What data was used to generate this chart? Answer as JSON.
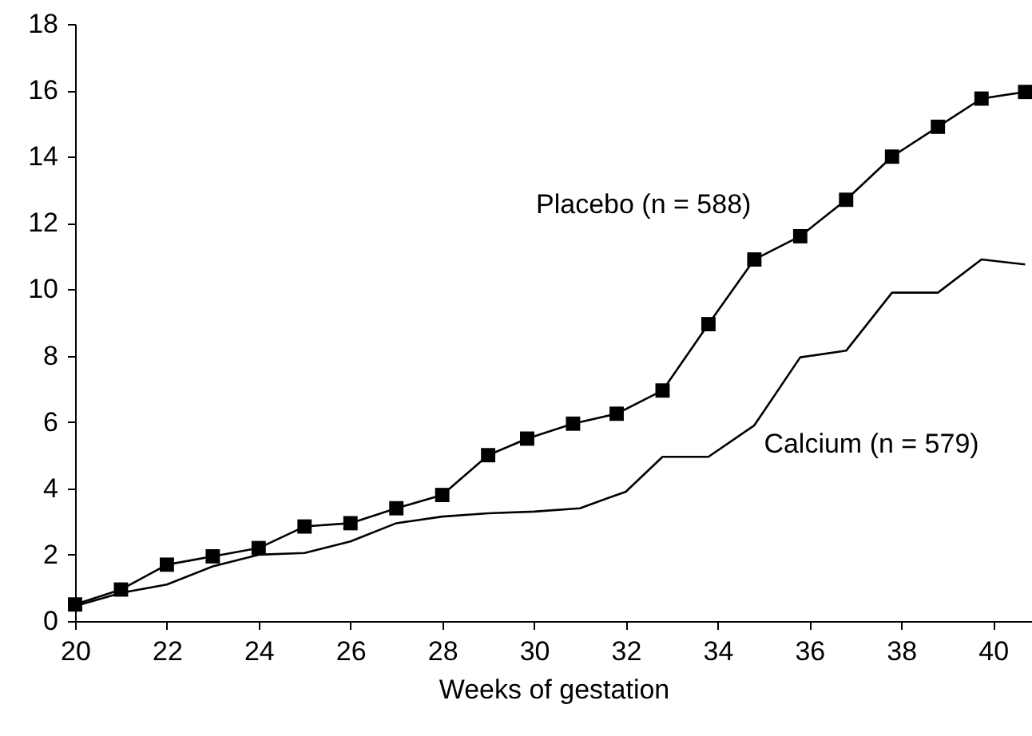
{
  "chart_data": {
    "type": "line",
    "xlabel": "Weeks of gestation",
    "xlim": [
      20,
      40.85
    ],
    "xticks": [
      20,
      22,
      24,
      26,
      28,
      30,
      32,
      34,
      36,
      38,
      40
    ],
    "ylim": [
      0,
      18
    ],
    "yticks": [
      0,
      2,
      4,
      6,
      8,
      10,
      12,
      14,
      16,
      18
    ],
    "grid": false,
    "line_style": "solid",
    "series": [
      {
        "name": "Placebo (n = 588)",
        "color": "#000000",
        "marker": "square",
        "x": [
          20,
          21,
          22,
          23,
          24,
          25,
          26,
          27,
          28,
          29,
          29.85,
          30.85,
          31.8,
          32.8,
          33.8,
          34.8,
          35.8,
          36.8,
          37.8,
          38.8,
          39.75,
          40.7
        ],
        "values": [
          0.5,
          0.95,
          1.7,
          1.95,
          2.2,
          2.85,
          2.95,
          3.4,
          3.8,
          5.0,
          5.5,
          5.95,
          6.25,
          6.95,
          8.95,
          10.9,
          11.6,
          12.7,
          14.0,
          14.9,
          15.75,
          15.95
        ]
      },
      {
        "name": "Calcium (n = 579)",
        "color": "#000000",
        "marker": "none",
        "x": [
          20,
          21,
          22,
          23,
          24,
          25,
          26,
          27,
          28,
          29,
          30,
          31,
          32,
          32.8,
          33.8,
          34.8,
          35.8,
          36.8,
          37.8,
          38.8,
          39.75,
          40.7
        ],
        "values": [
          0.45,
          0.85,
          1.1,
          1.65,
          2.0,
          2.05,
          2.4,
          2.95,
          3.15,
          3.25,
          3.3,
          3.4,
          3.9,
          4.95,
          4.95,
          5.9,
          7.95,
          8.15,
          9.9,
          9.9,
          10.9,
          10.75
        ]
      }
    ]
  }
}
